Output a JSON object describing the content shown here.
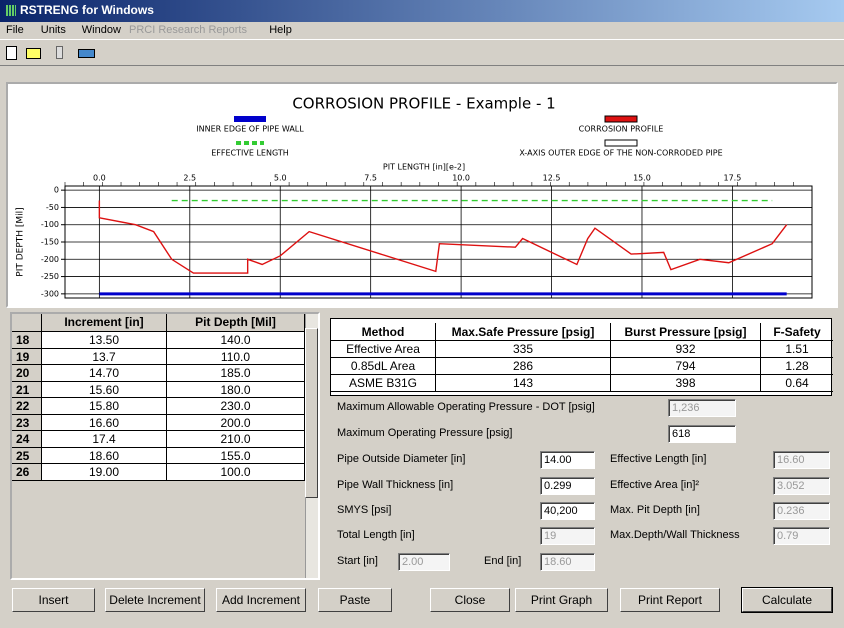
{
  "window_title": "RSTRENG for Windows",
  "menu": [
    "File",
    "Units",
    "Window",
    "PRCI Research Reports",
    "Help"
  ],
  "chart_data": {
    "type": "line",
    "title": "CORROSION PROFILE - Example - 1",
    "xlabel": "PIT LENGTH [in][e-2]",
    "ylabel": "PIT DEPTH [Mil]",
    "xlim": [
      -0.95,
      19.7
    ],
    "ylim": [
      -312,
      12
    ],
    "xticks": [
      {
        "value": 0,
        "label": "0.0"
      },
      2.5,
      {
        "value": 5,
        "label": "5.0"
      },
      7.5,
      {
        "value": 10,
        "label": "10.0"
      },
      12.5,
      {
        "value": 15,
        "label": "15.0"
      },
      17.5
    ],
    "yticks": [
      0,
      -50,
      -100,
      -150,
      -200,
      -250,
      -300
    ],
    "grid": true,
    "series": [
      {
        "name": "X-AXIS OUTER EDGE OF THE NON-CORRODED PIPE",
        "color": "#ffffff",
        "x": [
          0,
          19
        ],
        "values": [
          0,
          0
        ]
      },
      {
        "name": "INNER EDGE OF PIPE WALL",
        "color": "#0000cc",
        "x": [
          0,
          19
        ],
        "values": [
          -300,
          -300
        ]
      },
      {
        "name": "EFFECTIVE LENGTH",
        "color": "#33cc33",
        "x": [
          2,
          18.6
        ],
        "values": [
          -30,
          -30
        ]
      },
      {
        "name": "CORROSION PROFILE",
        "color": "#dd1111",
        "x": [
          0,
          0,
          1.0,
          1.5,
          2.0,
          2.6,
          4.1,
          4.1,
          4.5,
          5.0,
          5.8,
          9.3,
          9.4,
          11.5,
          11.7,
          13.2,
          13.5,
          13.7,
          14.7,
          15.6,
          15.8,
          16.6,
          17.4,
          18.6,
          19.0
        ],
        "values": [
          -30,
          -80,
          -100,
          -120,
          -200,
          -240,
          -240,
          -200,
          -215,
          -190,
          -120,
          -235,
          -155,
          -165,
          -140,
          -215,
          -140,
          -110,
          -185,
          -180,
          -230,
          -200,
          -210,
          -155,
          -100
        ]
      }
    ]
  },
  "increments": {
    "columns": [
      "Increment [in]",
      "Pit Depth [Mil]"
    ],
    "rows": [
      [
        "18",
        "13.50",
        "140.0"
      ],
      [
        "19",
        "13.7",
        "110.0"
      ],
      [
        "20",
        "14.70",
        "185.0"
      ],
      [
        "21",
        "15.60",
        "180.0"
      ],
      [
        "22",
        "15.80",
        "230.0"
      ],
      [
        "23",
        "16.60",
        "200.0"
      ],
      [
        "24",
        "17.4",
        "210.0"
      ],
      [
        "25",
        "18.60",
        "155.0"
      ],
      [
        "26",
        "19.00",
        "100.0"
      ]
    ]
  },
  "results": {
    "columns": [
      "Method",
      "Max.Safe Pressure [psig]",
      "Burst Pressure [psig]",
      "F-Safety"
    ],
    "rows": [
      [
        "Effective Area",
        "335",
        "932",
        "1.51"
      ],
      [
        "0.85dL Area",
        "286",
        "794",
        "1.28"
      ],
      [
        "ASME B31G",
        "143",
        "398",
        "0.64"
      ]
    ]
  },
  "fields": [
    {
      "label": "Maximum Allowable Operating Pressure - DOT [psig]",
      "value": "1,236"
    },
    {
      "label": "Maximum Operating Pressure [psig]",
      "value": "618"
    },
    {
      "label": "Pipe Outside Diameter [in]",
      "value": "14.00"
    },
    {
      "label": "Effective Length [in]",
      "value": "16.60"
    },
    {
      "label": "Pipe Wall Thickness [in]",
      "value": "0.299"
    },
    {
      "label": "Effective Area [in]²",
      "value": "3.052"
    },
    {
      "label": "SMYS [psi]",
      "value": "40,200"
    },
    {
      "label": "Max. Pit Depth [in]",
      "value": "0.236"
    },
    {
      "label": "Total Length [in]",
      "value": "19"
    },
    {
      "label": "Max.Depth/Wall Thickness",
      "value": "0.79"
    },
    {
      "label": "Start [in]",
      "value": "2.00"
    },
    {
      "label": "End [in]",
      "value": "18.60"
    }
  ],
  "buttons": [
    "Insert",
    "Delete Increment",
    "Add Increment",
    "Paste",
    "Close",
    "Print Graph",
    "Print Report",
    "Calculate"
  ]
}
